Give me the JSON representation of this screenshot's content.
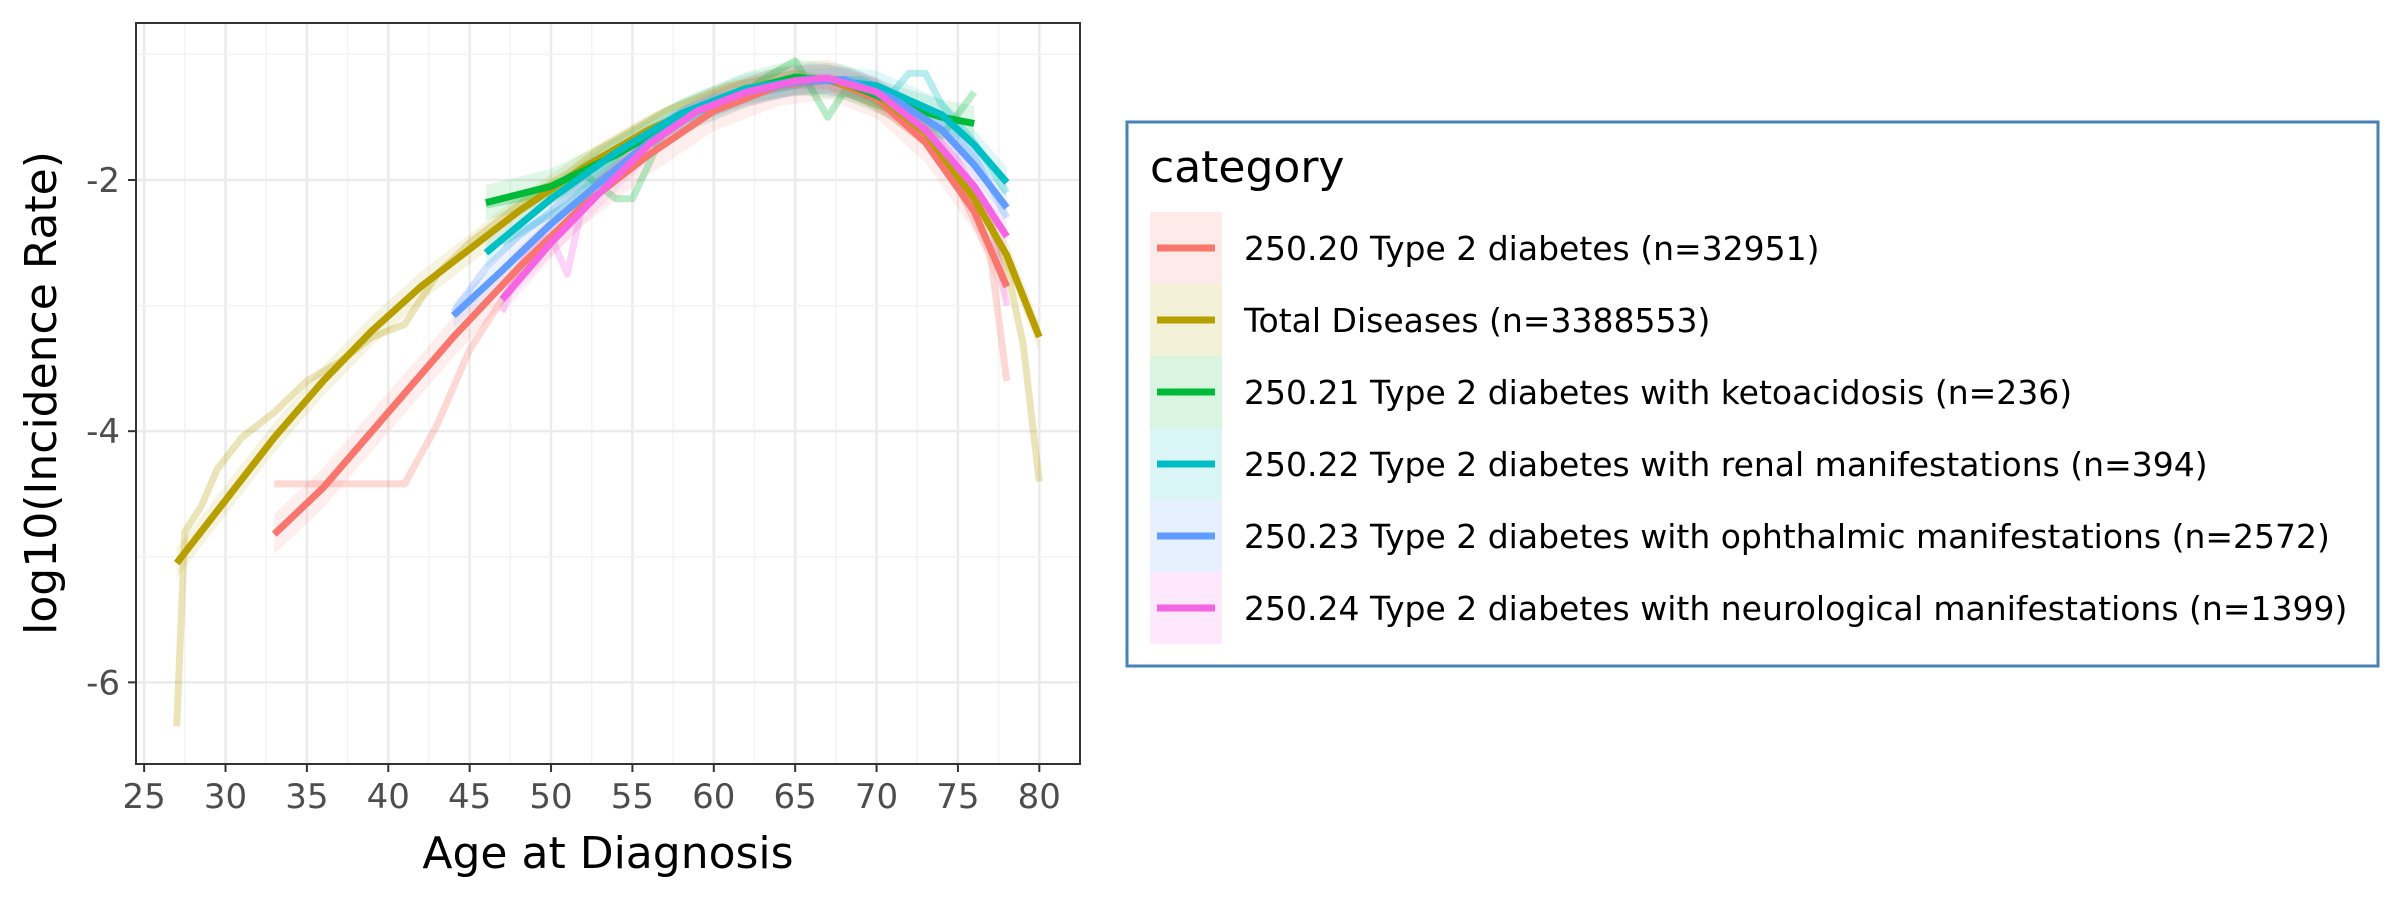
{
  "chart_data": {
    "type": "line",
    "xlabel": "Age at Diagnosis",
    "ylabel": "log10(Incidence Rate)",
    "xlim": [
      24.5,
      82.5
    ],
    "ylim": [
      -6.65,
      -0.75
    ],
    "x_ticks": [
      25,
      30,
      35,
      40,
      45,
      50,
      55,
      60,
      65,
      70,
      75,
      80
    ],
    "y_ticks": [
      -6,
      -4,
      -2
    ],
    "y_tick_labels": [
      "-6",
      "-4",
      "-2"
    ],
    "grid": true,
    "legend": {
      "title": "category",
      "placement": "right",
      "border_color": "#4682b4"
    },
    "series": [
      {
        "name": "250.20 Type 2 diabetes (n=32951)",
        "color": "#F8766D",
        "raw": [
          [
            33,
            -4.42
          ],
          [
            35,
            -4.42
          ],
          [
            38,
            -4.42
          ],
          [
            41,
            -4.42
          ],
          [
            43,
            -3.95
          ],
          [
            45,
            -3.35
          ],
          [
            47,
            -2.95
          ],
          [
            49,
            -2.6
          ],
          [
            51,
            -2.35
          ],
          [
            53,
            -2.0
          ],
          [
            55,
            -1.8
          ],
          [
            57,
            -1.6
          ],
          [
            59,
            -1.45
          ],
          [
            61,
            -1.35
          ],
          [
            63,
            -1.28
          ],
          [
            65,
            -1.25
          ],
          [
            67,
            -1.25
          ],
          [
            69,
            -1.35
          ],
          [
            71,
            -1.5
          ],
          [
            73,
            -1.7
          ],
          [
            75,
            -2.05
          ],
          [
            77,
            -2.6
          ],
          [
            78,
            -3.6
          ]
        ],
        "smooth": [
          [
            33,
            -4.82
          ],
          [
            36,
            -4.45
          ],
          [
            40,
            -3.85
          ],
          [
            44,
            -3.25
          ],
          [
            48,
            -2.7
          ],
          [
            52,
            -2.2
          ],
          [
            56,
            -1.8
          ],
          [
            60,
            -1.45
          ],
          [
            64,
            -1.25
          ],
          [
            67,
            -1.2
          ],
          [
            70,
            -1.35
          ],
          [
            73,
            -1.7
          ],
          [
            76,
            -2.25
          ],
          [
            78,
            -2.85
          ]
        ],
        "band": 0.16
      },
      {
        "name": "Total Diseases (n=3388553)",
        "color": "#B79F00",
        "raw": [
          [
            27,
            -6.35
          ],
          [
            27.5,
            -4.8
          ],
          [
            28.5,
            -4.6
          ],
          [
            29.5,
            -4.3
          ],
          [
            31,
            -4.05
          ],
          [
            33,
            -3.85
          ],
          [
            35,
            -3.6
          ],
          [
            37,
            -3.45
          ],
          [
            39,
            -3.25
          ],
          [
            41,
            -3.15
          ],
          [
            43,
            -2.75
          ],
          [
            45,
            -2.5
          ],
          [
            47,
            -2.3
          ],
          [
            49,
            -2.1
          ],
          [
            51,
            -1.95
          ],
          [
            53,
            -1.75
          ],
          [
            55,
            -1.6
          ],
          [
            57,
            -1.45
          ],
          [
            59,
            -1.35
          ],
          [
            61,
            -1.25
          ],
          [
            63,
            -1.2
          ],
          [
            65,
            -1.15
          ],
          [
            67,
            -1.2
          ],
          [
            69,
            -1.3
          ],
          [
            71,
            -1.45
          ],
          [
            73,
            -1.65
          ],
          [
            75,
            -1.95
          ],
          [
            77,
            -2.35
          ],
          [
            78,
            -2.7
          ],
          [
            79,
            -3.3
          ],
          [
            80,
            -4.4
          ]
        ],
        "smooth": [
          [
            27,
            -5.05
          ],
          [
            30,
            -4.55
          ],
          [
            33,
            -4.05
          ],
          [
            36,
            -3.6
          ],
          [
            39,
            -3.2
          ],
          [
            42,
            -2.85
          ],
          [
            45,
            -2.55
          ],
          [
            48,
            -2.25
          ],
          [
            52,
            -1.9
          ],
          [
            56,
            -1.6
          ],
          [
            60,
            -1.37
          ],
          [
            64,
            -1.22
          ],
          [
            67,
            -1.2
          ],
          [
            70,
            -1.32
          ],
          [
            73,
            -1.62
          ],
          [
            76,
            -2.15
          ],
          [
            78,
            -2.6
          ],
          [
            80,
            -3.25
          ]
        ],
        "band": 0.12
      },
      {
        "name": "250.21 Type 2 diabetes with ketoacidosis (n=236)",
        "color": "#00BA38",
        "raw": [
          [
            46,
            -2.2
          ],
          [
            48,
            -2.15
          ],
          [
            50,
            -2.1
          ],
          [
            52,
            -1.95
          ],
          [
            54,
            -2.15
          ],
          [
            55,
            -2.15
          ],
          [
            57,
            -1.6
          ],
          [
            59,
            -1.45
          ],
          [
            61,
            -1.4
          ],
          [
            63,
            -1.2
          ],
          [
            65,
            -1.05
          ],
          [
            67,
            -1.5
          ],
          [
            68,
            -1.3
          ],
          [
            70,
            -1.4
          ],
          [
            72,
            -1.5
          ],
          [
            74,
            -1.65
          ],
          [
            76,
            -1.3
          ]
        ],
        "smooth": [
          [
            46,
            -2.18
          ],
          [
            50,
            -2.05
          ],
          [
            54,
            -1.8
          ],
          [
            58,
            -1.5
          ],
          [
            62,
            -1.28
          ],
          [
            65,
            -1.18
          ],
          [
            68,
            -1.22
          ],
          [
            71,
            -1.38
          ],
          [
            74,
            -1.5
          ],
          [
            76,
            -1.55
          ]
        ],
        "band": 0.14
      },
      {
        "name": "250.22 Type 2 diabetes with renal manifestations (n=394)",
        "color": "#00BFC4",
        "raw": [
          [
            47,
            -2.5
          ],
          [
            49,
            -2.35
          ],
          [
            51,
            -2.2
          ],
          [
            53,
            -1.95
          ],
          [
            55,
            -1.7
          ],
          [
            57,
            -1.55
          ],
          [
            59,
            -1.5
          ],
          [
            61,
            -1.4
          ],
          [
            63,
            -1.3
          ],
          [
            65,
            -1.25
          ],
          [
            67,
            -1.2
          ],
          [
            69,
            -1.2
          ],
          [
            71,
            -1.3
          ],
          [
            72,
            -1.15
          ],
          [
            73,
            -1.15
          ],
          [
            74,
            -1.4
          ],
          [
            76,
            -1.7
          ],
          [
            78,
            -2.1
          ]
        ],
        "smooth": [
          [
            46,
            -2.58
          ],
          [
            50,
            -2.15
          ],
          [
            54,
            -1.78
          ],
          [
            58,
            -1.47
          ],
          [
            62,
            -1.27
          ],
          [
            66,
            -1.19
          ],
          [
            70,
            -1.25
          ],
          [
            74,
            -1.48
          ],
          [
            76,
            -1.72
          ],
          [
            78,
            -2.02
          ]
        ],
        "band": 0.12
      },
      {
        "name": "250.23 Type 2 diabetes with ophthalmic manifestations (n=2572)",
        "color": "#619CFF",
        "raw": [
          [
            44,
            -3.05
          ],
          [
            46,
            -2.7
          ],
          [
            48,
            -2.45
          ],
          [
            50,
            -2.25
          ],
          [
            52,
            -2.0
          ],
          [
            54,
            -1.75
          ],
          [
            56,
            -1.6
          ],
          [
            58,
            -1.45
          ],
          [
            60,
            -1.35
          ],
          [
            62,
            -1.28
          ],
          [
            64,
            -1.25
          ],
          [
            66,
            -1.22
          ],
          [
            68,
            -1.2
          ],
          [
            70,
            -1.25
          ],
          [
            72,
            -1.4
          ],
          [
            74,
            -1.55
          ],
          [
            76,
            -1.8
          ],
          [
            78,
            -2.3
          ]
        ],
        "smooth": [
          [
            44,
            -3.08
          ],
          [
            47,
            -2.72
          ],
          [
            50,
            -2.35
          ],
          [
            53,
            -2.02
          ],
          [
            56,
            -1.7
          ],
          [
            59,
            -1.45
          ],
          [
            62,
            -1.3
          ],
          [
            65,
            -1.22
          ],
          [
            68,
            -1.2
          ],
          [
            71,
            -1.35
          ],
          [
            74,
            -1.6
          ],
          [
            76,
            -1.88
          ],
          [
            78,
            -2.22
          ]
        ],
        "band": 0.1
      },
      {
        "name": "250.24 Type 2 diabetes with neurological manifestations (n=1399)",
        "color": "#F564E3",
        "raw": [
          [
            47,
            -3.05
          ],
          [
            48,
            -2.7
          ],
          [
            49,
            -2.5
          ],
          [
            50,
            -2.45
          ],
          [
            51,
            -2.75
          ],
          [
            52,
            -2.15
          ],
          [
            53,
            -2.0
          ],
          [
            55,
            -1.8
          ],
          [
            57,
            -1.6
          ],
          [
            59,
            -1.45
          ],
          [
            61,
            -1.35
          ],
          [
            63,
            -1.28
          ],
          [
            65,
            -1.2
          ],
          [
            67,
            -1.18
          ],
          [
            69,
            -1.25
          ],
          [
            71,
            -1.35
          ],
          [
            73,
            -1.55
          ],
          [
            75,
            -1.85
          ],
          [
            77,
            -2.3
          ],
          [
            78,
            -3.0
          ]
        ],
        "smooth": [
          [
            47,
            -2.95
          ],
          [
            50,
            -2.5
          ],
          [
            53,
            -2.1
          ],
          [
            56,
            -1.72
          ],
          [
            59,
            -1.45
          ],
          [
            62,
            -1.3
          ],
          [
            65,
            -1.21
          ],
          [
            67,
            -1.19
          ],
          [
            70,
            -1.3
          ],
          [
            73,
            -1.6
          ],
          [
            76,
            -2.05
          ],
          [
            78,
            -2.45
          ]
        ],
        "band": 0.12
      }
    ]
  }
}
